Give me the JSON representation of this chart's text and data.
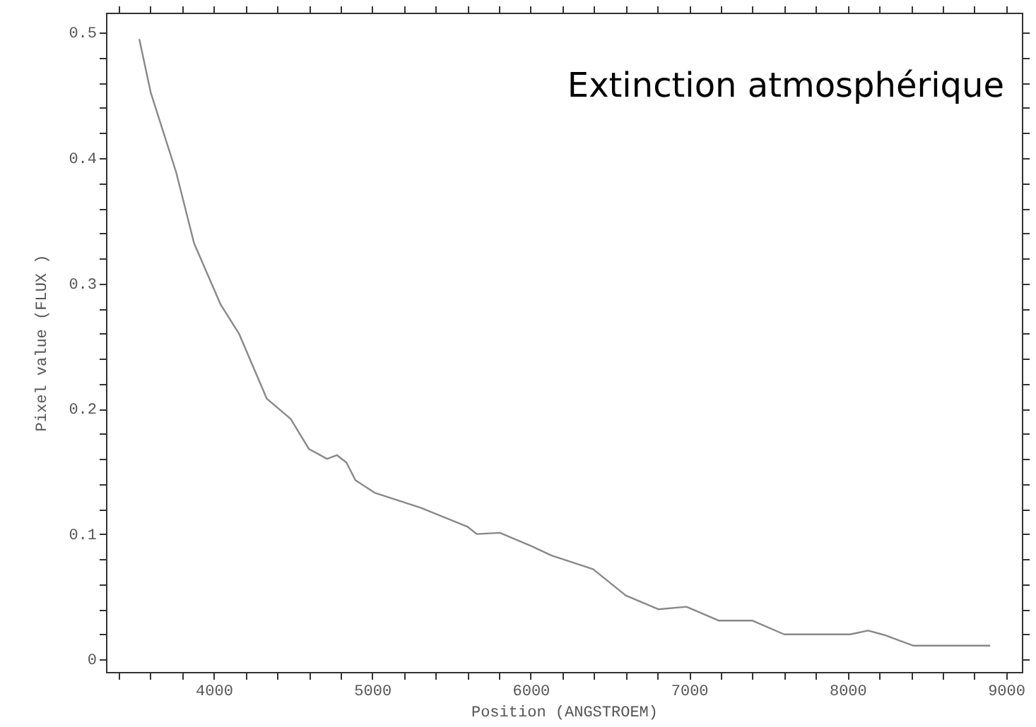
{
  "chart_data": {
    "type": "line",
    "title": "Extinction atmosphérique",
    "xlabel": "Position (ANGSTROEM)",
    "ylabel": "Pixel value (FLUX )",
    "series": [
      {
        "color": "#888888",
        "x": [
          3530,
          3603,
          3762,
          3876,
          4044,
          4159,
          4335,
          4485,
          4600,
          4715,
          4777,
          4838,
          4894,
          5015,
          5306,
          5600,
          5660,
          5806,
          6012,
          6130,
          6394,
          6600,
          6806,
          6983,
          7186,
          7398,
          7600,
          8016,
          8130,
          8245,
          8413,
          8900
        ],
        "values": [
          0.495,
          0.452,
          0.389,
          0.332,
          0.283,
          0.26,
          0.208,
          0.192,
          0.168,
          0.16,
          0.163,
          0.157,
          0.143,
          0.133,
          0.121,
          0.106,
          0.1,
          0.101,
          0.09,
          0.083,
          0.072,
          0.051,
          0.04,
          0.042,
          0.031,
          0.031,
          0.02,
          0.02,
          0.023,
          0.019,
          0.011,
          0.011
        ]
      }
    ],
    "xlim": [
      3320,
      9100
    ],
    "xticks": [
      {
        "value": 3400,
        "label": null
      },
      {
        "value": 3600,
        "label": null
      },
      {
        "value": 3800,
        "label": null
      },
      4000,
      {
        "value": 4200,
        "label": null
      },
      {
        "value": 4400,
        "label": null
      },
      {
        "value": 4600,
        "label": null
      },
      {
        "value": 4800,
        "label": null
      },
      5000,
      {
        "value": 5200,
        "label": null
      },
      {
        "value": 5400,
        "label": null
      },
      {
        "value": 5600,
        "label": null
      },
      {
        "value": 5800,
        "label": null
      },
      6000,
      {
        "value": 6200,
        "label": null
      },
      {
        "value": 6400,
        "label": null
      },
      {
        "value": 6600,
        "label": null
      },
      {
        "value": 6800,
        "label": null
      },
      7000,
      {
        "value": 7200,
        "label": null
      },
      {
        "value": 7400,
        "label": null
      },
      {
        "value": 7600,
        "label": null
      },
      {
        "value": 7800,
        "label": null
      },
      8000,
      {
        "value": 8200,
        "label": null
      },
      {
        "value": 8400,
        "label": null
      },
      {
        "value": 8600,
        "label": null
      },
      {
        "value": 8800,
        "label": null
      },
      9000
    ],
    "ylim": [
      -0.01,
      0.516
    ],
    "yticks": [
      0,
      {
        "value": 0.02,
        "label": null
      },
      {
        "value": 0.04,
        "label": null
      },
      {
        "value": 0.06,
        "label": null
      },
      {
        "value": 0.08,
        "label": null
      },
      0.1,
      {
        "value": 0.12,
        "label": null
      },
      {
        "value": 0.14,
        "label": null
      },
      {
        "value": 0.16,
        "label": null
      },
      {
        "value": 0.18,
        "label": null
      },
      0.2,
      {
        "value": 0.22,
        "label": null
      },
      {
        "value": 0.24,
        "label": null
      },
      {
        "value": 0.26,
        "label": null
      },
      {
        "value": 0.28,
        "label": null
      },
      0.3,
      {
        "value": 0.32,
        "label": null
      },
      {
        "value": 0.34,
        "label": null
      },
      {
        "value": 0.36,
        "label": null
      },
      {
        "value": 0.38,
        "label": null
      },
      0.4,
      {
        "value": 0.42,
        "label": null
      },
      {
        "value": 0.44,
        "label": null
      },
      {
        "value": 0.46,
        "label": null
      },
      {
        "value": 0.48,
        "label": null
      },
      0.5
    ],
    "grid": false,
    "marker": "none",
    "line_style": "solid"
  }
}
